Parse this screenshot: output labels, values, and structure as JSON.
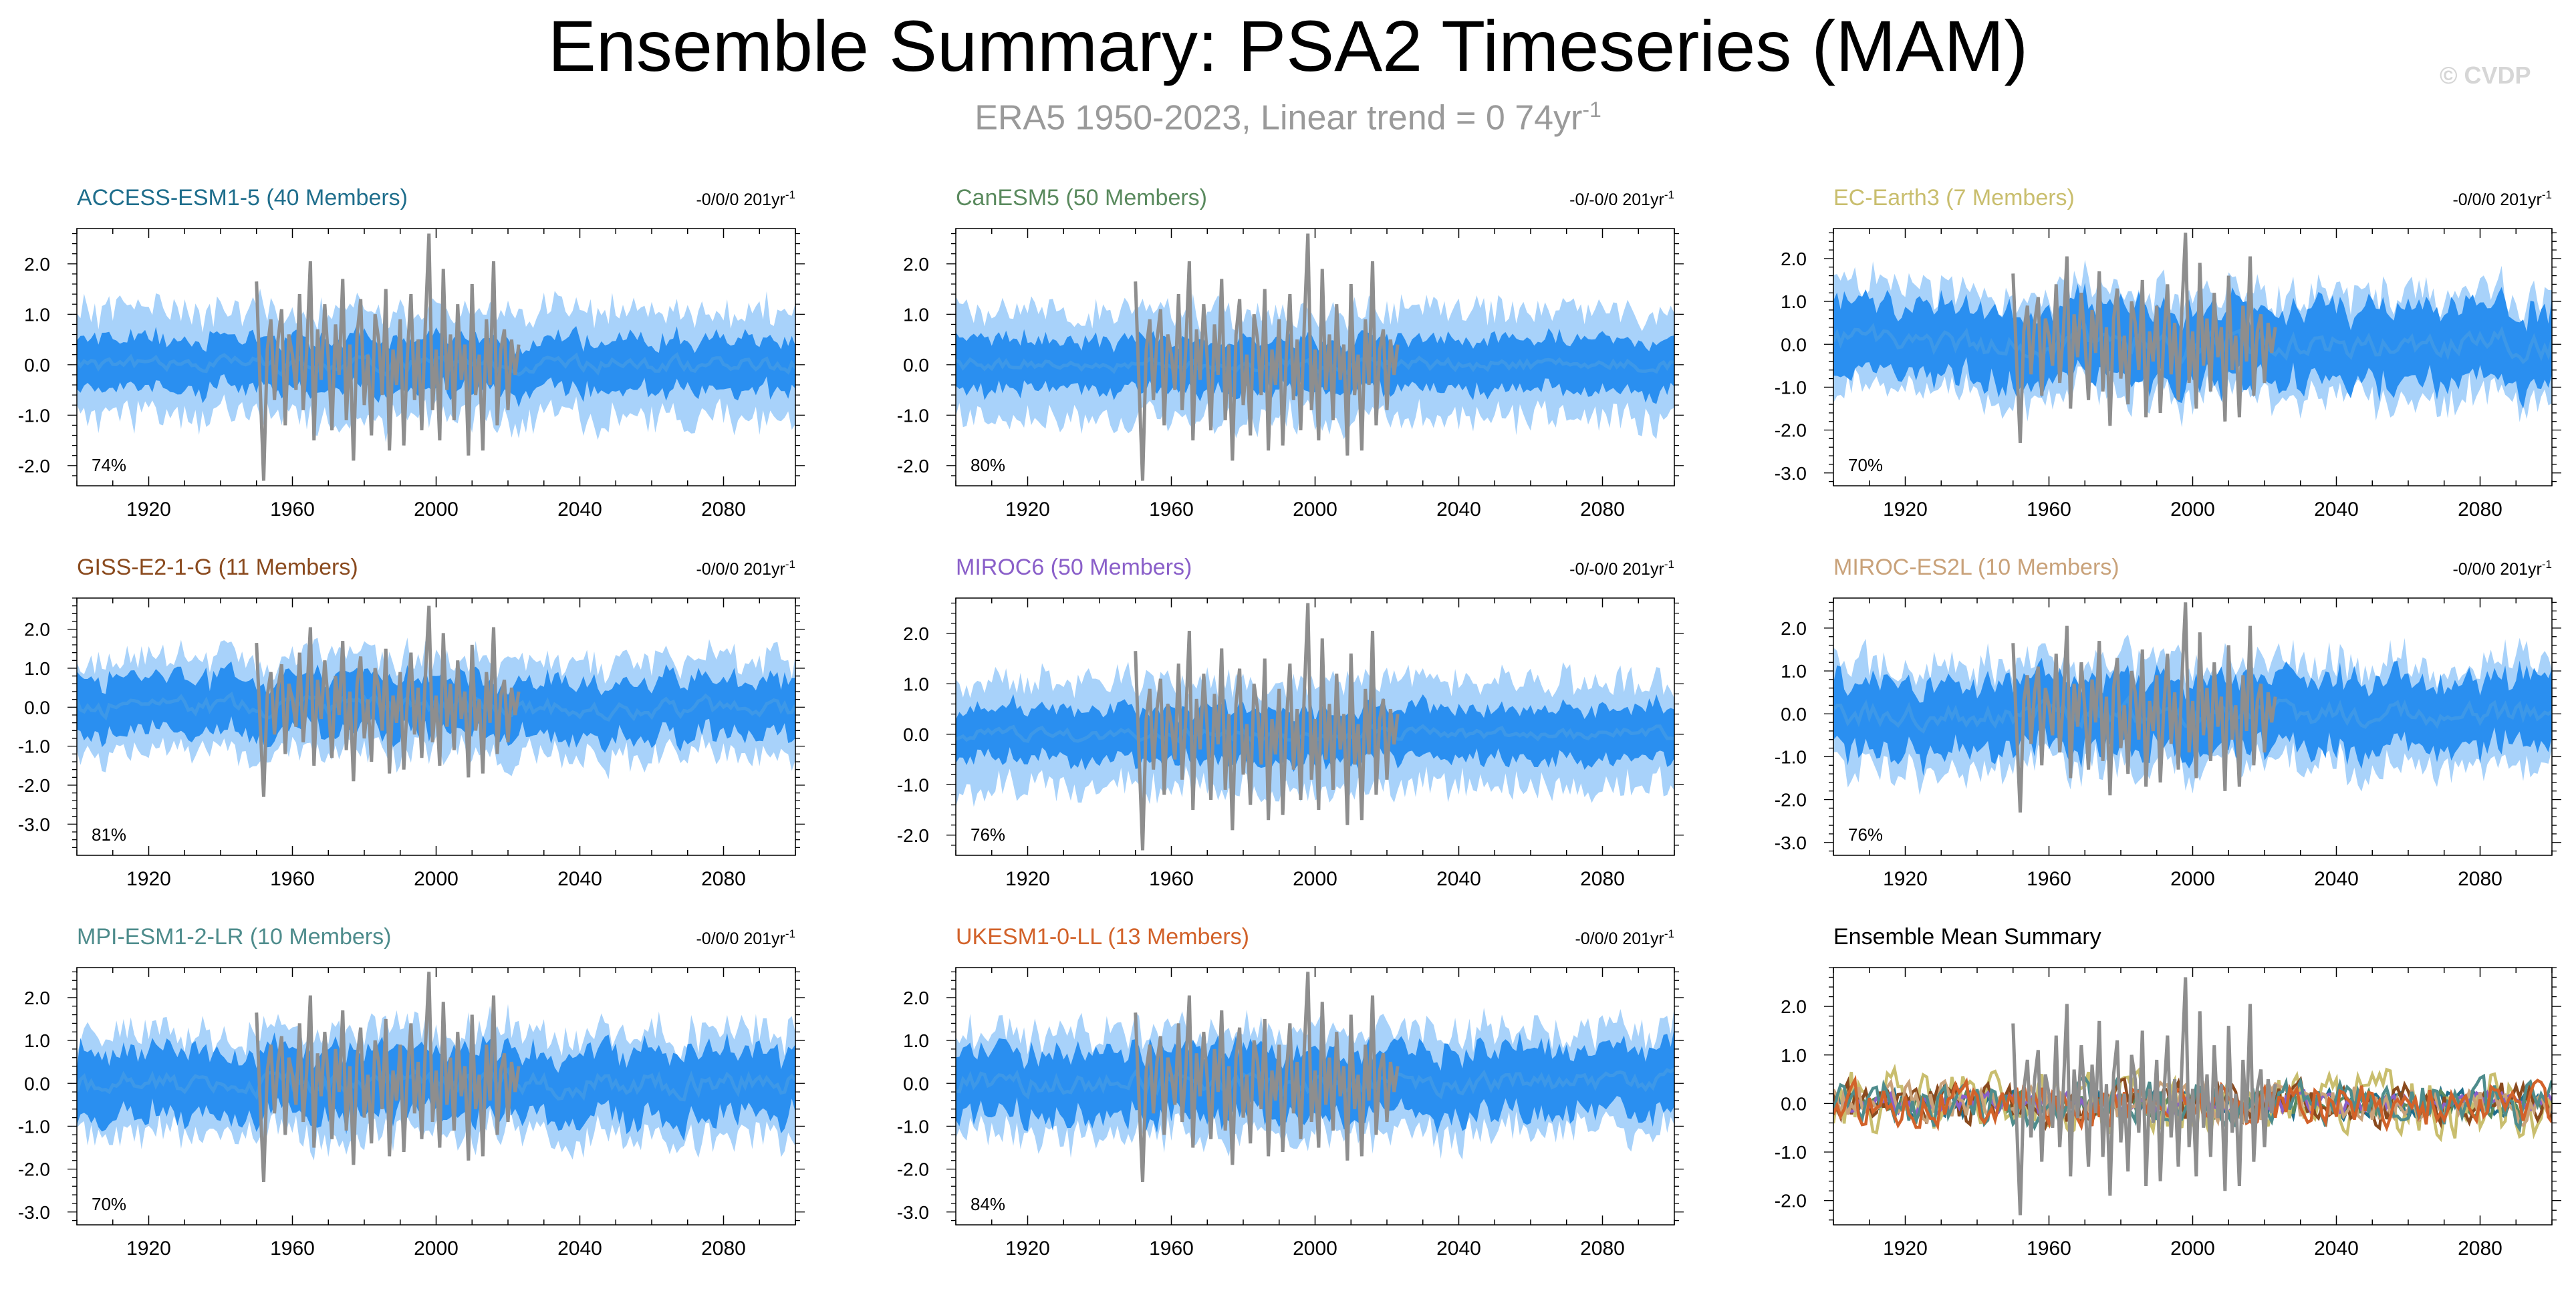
{
  "title": "Ensemble Summary: PSA2 Timeseries (MAM)",
  "subtitle": {
    "text": "ERA5 1950-2023, Linear trend = 0 74yr",
    "sup": "-1"
  },
  "copyright": "© CVDP",
  "colors": {
    "outer_band": "#a8d2fa",
    "inner_band": "#2a8ff0",
    "mean_line": "#3d98e8",
    "observed": "#8e8e8e"
  },
  "chart_data": [
    {
      "type": "area",
      "panel": 1,
      "title": "ACCESS-ESM1-5 (40 Members)",
      "title_color": "#1f6e8c",
      "trend": "-0/0/0 201yr",
      "trend_sup": "-1",
      "pct": "74%",
      "xlim": [
        1900,
        2100
      ],
      "xticks": [
        1920,
        1960,
        2000,
        2040,
        2080
      ],
      "ylim": [
        -2.4,
        2.7
      ],
      "yticks": [
        -2.0,
        -1.0,
        0.0,
        1.0,
        2.0
      ],
      "yticklabels": [
        "-2.0",
        "-1.0",
        "0.0",
        "1.0",
        "2.0"
      ],
      "outer_spread": 1.05,
      "inner_spread": 0.5,
      "mean_amp": 0.12,
      "seed": 11
    },
    {
      "type": "area",
      "panel": 2,
      "title": "CanESM5 (50 Members)",
      "title_color": "#5a8a5e",
      "trend": "-0/-0/0 201yr",
      "trend_sup": "-1",
      "pct": "80%",
      "xlim": [
        1900,
        2100
      ],
      "xticks": [
        1920,
        1960,
        2000,
        2040,
        2080
      ],
      "ylim": [
        -2.4,
        2.7
      ],
      "yticks": [
        -2.0,
        -1.0,
        0.0,
        1.0,
        2.0
      ],
      "yticklabels": [
        "-2.0",
        "-1.0",
        "0.0",
        "1.0",
        "2.0"
      ],
      "outer_spread": 1.05,
      "inner_spread": 0.5,
      "mean_amp": 0.1,
      "seed": 23
    },
    {
      "type": "area",
      "panel": 3,
      "title": "EC-Earth3 (7 Members)",
      "title_color": "#c9be6e",
      "trend": "-0/0/0 201yr",
      "trend_sup": "-1",
      "pct": "70%",
      "xlim": [
        1900,
        2100
      ],
      "xticks": [
        1920,
        1960,
        2000,
        2040,
        2080
      ],
      "ylim": [
        -3.3,
        2.7
      ],
      "yticks": [
        -3.0,
        -2.0,
        -1.0,
        0.0,
        1.0,
        2.0
      ],
      "yticklabels": [
        "-3.0",
        "-2.0",
        "-1.0",
        "0.0",
        "1.0",
        "2.0"
      ],
      "outer_spread": 1.2,
      "inner_spread": 0.85,
      "mean_amp": 0.25,
      "seed": 37
    },
    {
      "type": "area",
      "panel": 4,
      "title": "GISS-E2-1-G (11 Members)",
      "title_color": "#8a4a1e",
      "trend": "-0/0/0 201yr",
      "trend_sup": "-1",
      "pct": "81%",
      "xlim": [
        1900,
        2100
      ],
      "xticks": [
        1920,
        1960,
        2000,
        2040,
        2080
      ],
      "ylim": [
        -3.8,
        2.8
      ],
      "yticks": [
        -3.0,
        -2.0,
        -1.0,
        0.0,
        1.0,
        2.0
      ],
      "yticklabels": [
        "-3.0",
        "-2.0",
        "-1.0",
        "0.0",
        "1.0",
        "2.0"
      ],
      "outer_spread": 1.2,
      "inner_spread": 0.7,
      "mean_amp": 0.2,
      "seed": 41
    },
    {
      "type": "area",
      "panel": 5,
      "title": "MIROC6 (50 Members)",
      "title_color": "#8a5fc9",
      "trend": "-0/-0/0 201yr",
      "trend_sup": "-1",
      "pct": "76%",
      "xlim": [
        1900,
        2100
      ],
      "xticks": [
        1920,
        1960,
        2000,
        2040,
        2080
      ],
      "ylim": [
        -2.4,
        2.7
      ],
      "yticks": [
        -2.0,
        -1.0,
        0.0,
        1.0,
        2.0
      ],
      "yticklabels": [
        "-2.0",
        "-1.0",
        "0.0",
        "1.0",
        "2.0"
      ],
      "outer_spread": 1.05,
      "inner_spread": 0.5,
      "mean_amp": 0.1,
      "seed": 53
    },
    {
      "type": "area",
      "panel": 6,
      "title": "MIROC-ES2L (10 Members)",
      "title_color": "#c9a27a",
      "trend": "-0/0/0 201yr",
      "trend_sup": "-1",
      "pct": "76%",
      "xlim": [
        1900,
        2100
      ],
      "xticks": [
        1920,
        1960,
        2000,
        2040,
        2080
      ],
      "ylim": [
        -3.3,
        2.7
      ],
      "yticks": [
        -3.0,
        -2.0,
        -1.0,
        0.0,
        1.0,
        2.0
      ],
      "yticklabels": [
        "-3.0",
        "-2.0",
        "-1.0",
        "0.0",
        "1.0",
        "2.0"
      ],
      "outer_spread": 1.2,
      "inner_spread": 0.8,
      "mean_amp": 0.22,
      "seed": 67
    },
    {
      "type": "area",
      "panel": 7,
      "title": "MPI-ESM1-2-LR (10 Members)",
      "title_color": "#4e8c8c",
      "trend": "-0/0/0 201yr",
      "trend_sup": "-1",
      "pct": "70%",
      "xlim": [
        1900,
        2100
      ],
      "xticks": [
        1920,
        1960,
        2000,
        2040,
        2080
      ],
      "ylim": [
        -3.3,
        2.7
      ],
      "yticks": [
        -3.0,
        -2.0,
        -1.0,
        0.0,
        1.0,
        2.0
      ],
      "yticklabels": [
        "-3.0",
        "-2.0",
        "-1.0",
        "0.0",
        "1.0",
        "2.0"
      ],
      "outer_spread": 1.2,
      "inner_spread": 0.75,
      "mean_amp": 0.22,
      "seed": 71
    },
    {
      "type": "area",
      "panel": 8,
      "title": "UKESM1-0-LL (13 Members)",
      "title_color": "#d2622a",
      "trend": "-0/0/0 201yr",
      "trend_sup": "-1",
      "pct": "84%",
      "xlim": [
        1900,
        2100
      ],
      "xticks": [
        1920,
        1960,
        2000,
        2040,
        2080
      ],
      "ylim": [
        -3.3,
        2.7
      ],
      "yticks": [
        -3.0,
        -2.0,
        -1.0,
        0.0,
        1.0,
        2.0
      ],
      "yticklabels": [
        "-3.0",
        "-2.0",
        "-1.0",
        "0.0",
        "1.0",
        "2.0"
      ],
      "outer_spread": 1.2,
      "inner_spread": 0.75,
      "mean_amp": 0.22,
      "seed": 83
    },
    {
      "type": "line",
      "panel": 9,
      "title": "Ensemble Mean Summary",
      "title_color": "#000000",
      "xlim": [
        1900,
        2100
      ],
      "xticks": [
        1920,
        1960,
        2000,
        2040,
        2080
      ],
      "ylim": [
        -2.5,
        2.8
      ],
      "yticks": [
        -2.0,
        -1.0,
        0.0,
        1.0,
        2.0
      ],
      "yticklabels": [
        "-2.0",
        "-1.0",
        "0.0",
        "1.0",
        "2.0"
      ],
      "series": [
        {
          "color": "#1f6e8c",
          "amp": 0.2,
          "seed": 101
        },
        {
          "color": "#5a8a5e",
          "amp": 0.18,
          "seed": 103
        },
        {
          "color": "#c9be6e",
          "amp": 0.45,
          "seed": 107
        },
        {
          "color": "#8a4a1e",
          "amp": 0.3,
          "seed": 109
        },
        {
          "color": "#8a5fc9",
          "amp": 0.15,
          "seed": 113
        },
        {
          "color": "#c9a27a",
          "amp": 0.3,
          "seed": 127
        },
        {
          "color": "#4e8c8c",
          "amp": 0.32,
          "seed": 131
        },
        {
          "color": "#d2622a",
          "amp": 0.32,
          "seed": 137
        }
      ]
    }
  ],
  "observed": {
    "name": "ERA5",
    "years": [
      1950,
      1951,
      1952,
      1953,
      1954,
      1955,
      1956,
      1957,
      1958,
      1959,
      1960,
      1961,
      1962,
      1963,
      1964,
      1965,
      1966,
      1967,
      1968,
      1969,
      1970,
      1971,
      1972,
      1973,
      1974,
      1975,
      1976,
      1977,
      1978,
      1979,
      1980,
      1981,
      1982,
      1983,
      1984,
      1985,
      1986,
      1987,
      1988,
      1989,
      1990,
      1991,
      1992,
      1993,
      1994,
      1995,
      1996,
      1997,
      1998,
      1999,
      2000,
      2001,
      2002,
      2003,
      2004,
      2005,
      2006,
      2007,
      2008,
      2009,
      2010,
      2011,
      2012,
      2013,
      2014,
      2015,
      2016,
      2017,
      2018,
      2019,
      2020,
      2021,
      2022,
      2023
    ],
    "values": [
      1.65,
      -0.4,
      -2.3,
      0.3,
      0.9,
      -0.7,
      0.5,
      1.1,
      -1.2,
      0.6,
      0.2,
      -0.5,
      1.4,
      -0.9,
      0.3,
      2.05,
      -1.5,
      0.7,
      -0.3,
      1.2,
      0.1,
      -1.3,
      0.8,
      -0.2,
      1.7,
      -1.1,
      0.4,
      -1.9,
      0.6,
      1.3,
      -0.8,
      0.2,
      -1.4,
      1.0,
      0.5,
      -0.6,
      1.5,
      -1.7,
      0.3,
      -0.4,
      0.9,
      -1.6,
      0.2,
      1.4,
      -0.7,
      0.5,
      -1.3,
      0.8,
      2.6,
      -0.9,
      0.3,
      -1.5,
      1.9,
      -0.5,
      0.6,
      -1.1,
      1.2,
      -0.3,
      0.4,
      -1.8,
      1.6,
      -0.6,
      0.2,
      -1.7,
      0.9,
      -0.4,
      2.05,
      -1.2,
      0.3,
      0.7,
      -0.9,
      0.5,
      -0.2,
      0.4
    ]
  }
}
